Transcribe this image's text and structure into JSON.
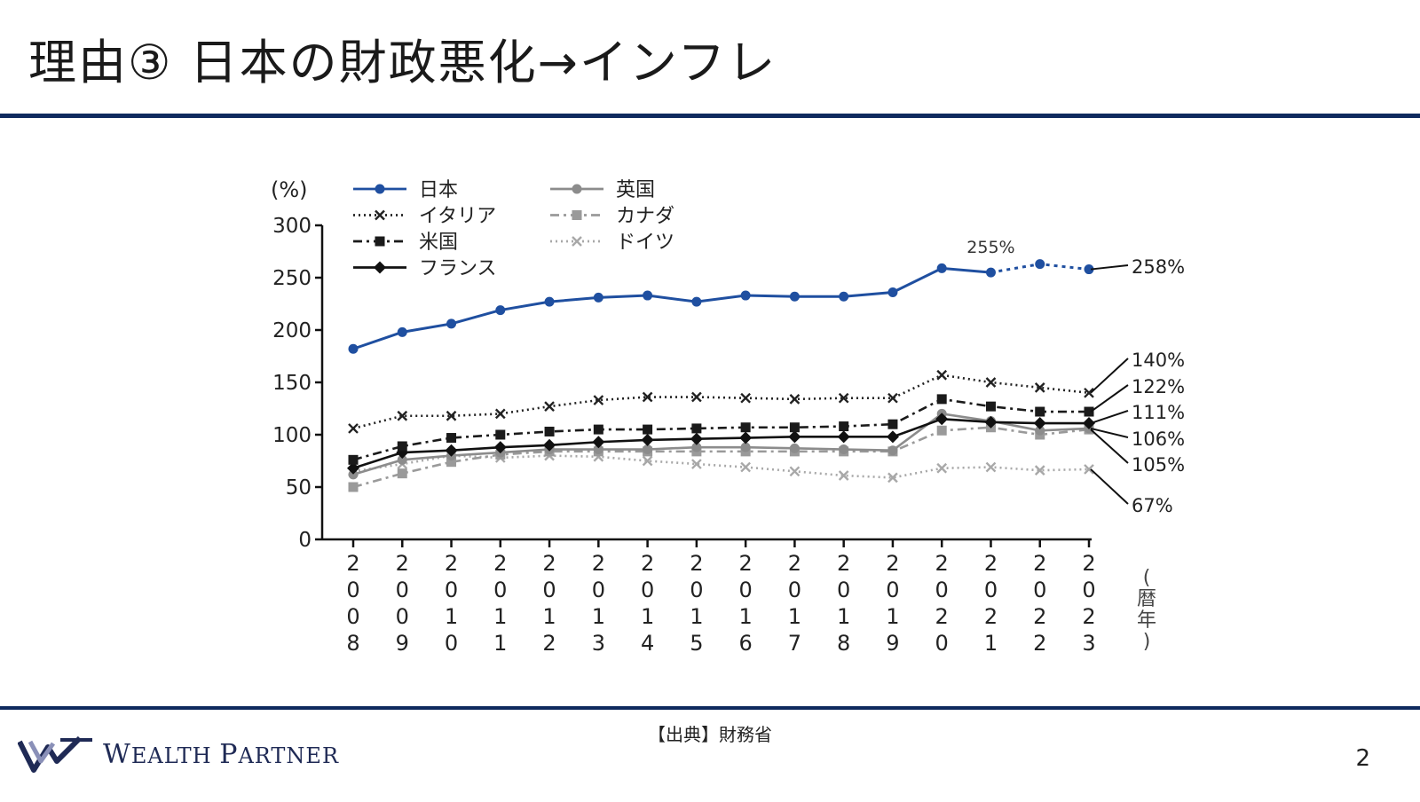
{
  "slide": {
    "title": "理由③ 日本の財政悪化→インフレ",
    "source": "【出典】財務省",
    "page_number": "2",
    "logo": {
      "first_big": "W",
      "first_rest": "EALTH ",
      "second_big": "P",
      "second_rest": "ARTNER"
    }
  },
  "colors": {
    "rule": "#0f2a5e",
    "japan": "#1f4fa0",
    "italy": "#222222",
    "us": "#1a1a1a",
    "france": "#111111",
    "uk": "#8c8c8c",
    "canada": "#9a9a9a",
    "germany": "#a8a8a8"
  },
  "chart_data": {
    "type": "line",
    "ylabel": "(%)",
    "xlabel": "(暦年)",
    "ylim": [
      0,
      300
    ],
    "yticks": [
      0,
      50,
      100,
      150,
      200,
      250,
      300
    ],
    "x": [
      "2008",
      "2009",
      "2010",
      "2011",
      "2012",
      "2013",
      "2014",
      "2015",
      "2016",
      "2017",
      "2018",
      "2019",
      "2020",
      "2021",
      "2022",
      "2023"
    ],
    "dashed_from_index": 13,
    "series": [
      {
        "name": "日本",
        "key": "japan",
        "marker": "circle",
        "dash": "solid",
        "values": [
          182,
          198,
          206,
          219,
          227,
          231,
          233,
          227,
          233,
          232,
          232,
          236,
          259,
          255,
          263,
          258
        ]
      },
      {
        "name": "イタリア",
        "key": "italy",
        "marker": "x",
        "dash": "dotted",
        "values": [
          106,
          118,
          118,
          120,
          127,
          133,
          136,
          136,
          135,
          134,
          135,
          135,
          157,
          150,
          145,
          140
        ]
      },
      {
        "name": "米国",
        "key": "us",
        "marker": "square",
        "dash": "dashdot",
        "values": [
          76,
          89,
          97,
          100,
          103,
          105,
          105,
          106,
          107,
          107,
          108,
          110,
          134,
          127,
          122,
          122
        ]
      },
      {
        "name": "フランス",
        "key": "france",
        "marker": "diamond",
        "dash": "solid",
        "values": [
          68,
          83,
          85,
          88,
          90,
          93,
          95,
          96,
          97,
          98,
          98,
          98,
          115,
          112,
          111,
          111
        ]
      },
      {
        "name": "英国",
        "key": "uk",
        "marker": "circle",
        "dash": "solid",
        "values": [
          62,
          76,
          80,
          83,
          86,
          86,
          86,
          88,
          88,
          87,
          86,
          85,
          120,
          113,
          104,
          106
        ]
      },
      {
        "name": "カナダ",
        "key": "canada",
        "marker": "square",
        "dash": "dashdot",
        "values": [
          50,
          63,
          74,
          81,
          84,
          84,
          84,
          84,
          84,
          84,
          84,
          84,
          104,
          107,
          100,
          105
        ]
      },
      {
        "name": "ドイツ",
        "key": "germany",
        "marker": "x",
        "dash": "dotted",
        "values": [
          65,
          72,
          80,
          78,
          80,
          79,
          75,
          72,
          69,
          65,
          61,
          59,
          68,
          69,
          66,
          67
        ]
      }
    ],
    "annotations": {
      "japan_2021": "255%",
      "end_labels": [
        "258%",
        "140%",
        "122%",
        "111%",
        "106%",
        "105%",
        "67%"
      ]
    },
    "legend": {
      "placement": "top-left"
    }
  }
}
